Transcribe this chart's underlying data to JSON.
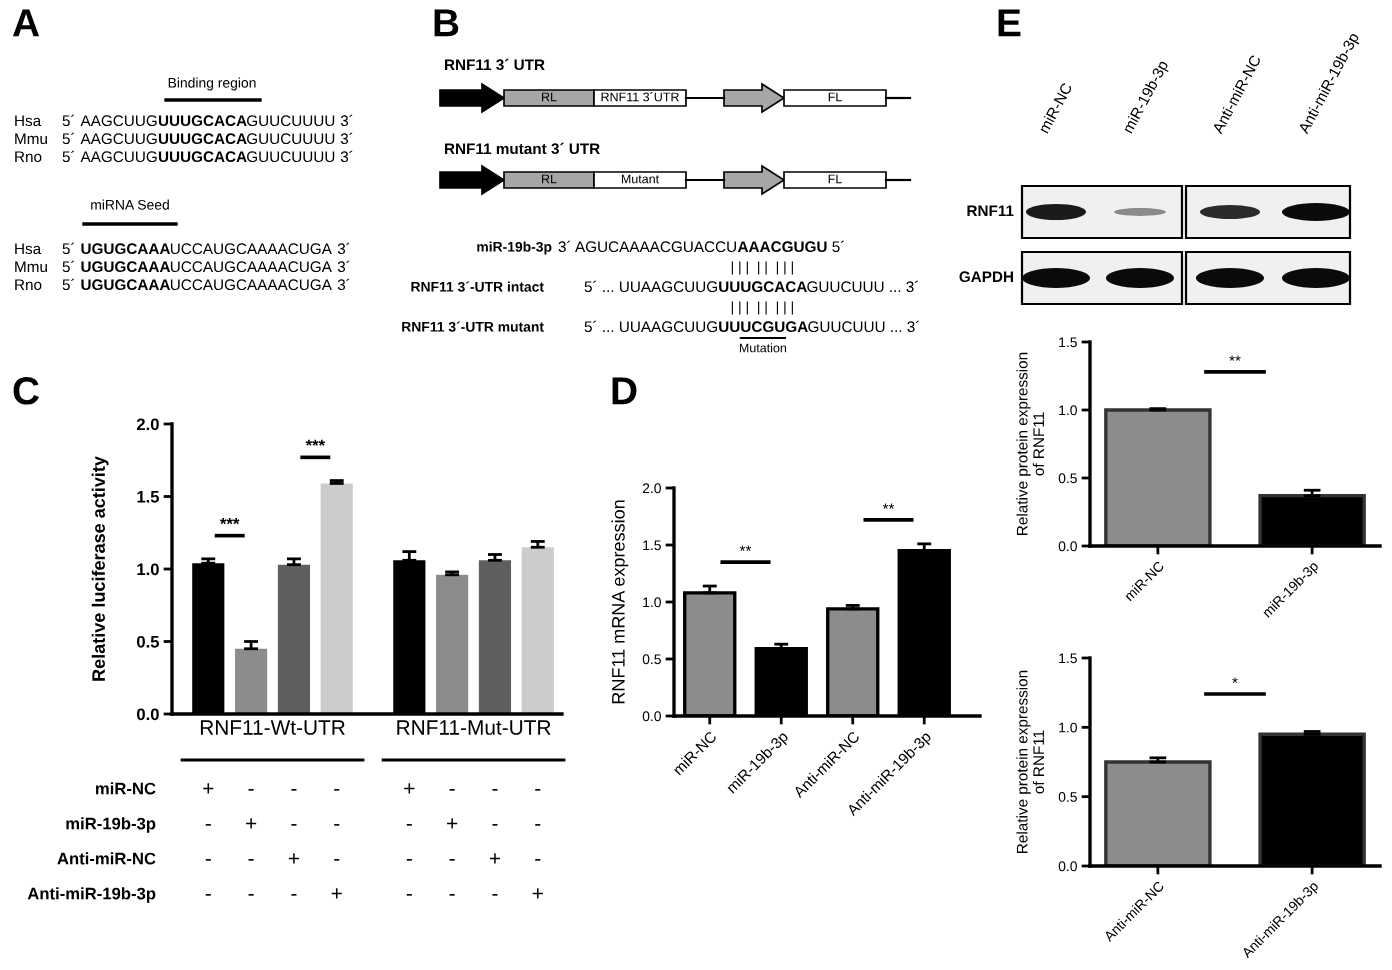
{
  "chart_data": [
    {
      "type": "other",
      "title": "A",
      "annotations": [
        "Binding region",
        "Hsa",
        "5´",
        "AAGCUUG",
        "UUUGCACA",
        "GUUCUUUU",
        "3´",
        "Mmu",
        "5´",
        "AAGCUUG",
        "UUUGCACA",
        "GUUCUUUU",
        "3´",
        "Rno",
        "5´",
        "AAGCUUG",
        "UUUGCACA",
        "GUUCUUUU",
        "3´",
        "miRNA Seed",
        "Hsa",
        "5´",
        "UGUGCAAA",
        "UCCAUGCAAAACUGA",
        "3´",
        "Mmu",
        "5´",
        "UGUGCAAA",
        "UCCAUGCAAAACUGA",
        "3´",
        "Rno",
        "5´",
        "UGUGCAAA",
        "UCCAUGCAAAACUGA",
        "3´"
      ]
    },
    {
      "type": "other",
      "title": "B",
      "annotations": [
        "RNF11 3´ UTR",
        "RL",
        "RNF11 3´UTR",
        "FL",
        "RNF11 mutant 3´ UTR",
        "RL",
        "Mutant",
        "FL",
        "miR-19b-3p",
        "3´ AGUCAAAACGUACCU",
        "AAACGUGU",
        "5´",
        "| | |  | |  | | |",
        "RNF11 3´-UTR intact",
        "5´ ... UUAAGCUUG",
        "UUUGCACA",
        "GUUCUUU ... 3´",
        "| | |  | |  | | |",
        "RNF11 3´-UTR mutant",
        "5´ ... UUAAGCUUG",
        "UUUCGUGA",
        "GUUCUUU ... 3´",
        "Mutation"
      ]
    },
    {
      "type": "bar",
      "title": "C",
      "ylabel": "Relative luciferase activity",
      "categories": [
        "RNF11-Wt-UTR",
        "RNF11-Mut-UTR"
      ],
      "series": [
        {
          "color": "#000000",
          "values": [
            1.04,
            1.06
          ],
          "errors": [
            0.03,
            0.06
          ]
        },
        {
          "color": "#8c8c8c",
          "values": [
            0.45,
            0.96
          ],
          "errors": [
            0.05,
            0.02
          ]
        },
        {
          "color": "#5f5f5f",
          "values": [
            1.03,
            1.06
          ],
          "errors": [
            0.04,
            0.04
          ]
        },
        {
          "color": "#cccccc",
          "values": [
            1.59,
            1.15
          ],
          "errors": [
            0.02,
            0.04
          ]
        }
      ],
      "ylim": [
        0,
        2
      ],
      "yticks": [
        {
          "value": 0,
          "label": "0.0"
        },
        {
          "value": 0.5,
          "label": "0.5"
        },
        {
          "value": 1,
          "label": "1.0"
        },
        {
          "value": 1.5,
          "label": "1.5"
        },
        {
          "value": 2,
          "label": "2.0"
        }
      ],
      "annotations": [
        "***",
        "***",
        "miR-NC",
        "+",
        "-",
        "-",
        "-",
        "+",
        "-",
        "-",
        "-",
        "miR-19b-3p",
        "-",
        "+",
        "-",
        "-",
        "-",
        "+",
        "-",
        "-",
        "Anti-miR-NC",
        "-",
        "-",
        "+",
        "-",
        "-",
        "-",
        "+",
        "-",
        "Anti-miR-19b-3p",
        "-",
        "-",
        "-",
        "+",
        "-",
        "-",
        "-",
        "+"
      ]
    },
    {
      "type": "bar",
      "title": "D",
      "ylabel": "RNF11 mRNA expression",
      "categories": [
        "miR-NC",
        "miR-19b-3p",
        "Anti-miR-NC",
        "Anti-miR-19b-3p"
      ],
      "values": [
        1.08,
        0.59,
        0.94,
        1.45
      ],
      "errors": [
        0.06,
        0.04,
        0.03,
        0.06
      ],
      "colors": [
        "#8c8c8c",
        "#000000",
        "#8c8c8c",
        "#000000"
      ],
      "ylim": [
        0,
        2
      ],
      "yticks": [
        {
          "value": 0,
          "label": "0.0"
        },
        {
          "value": 0.5,
          "label": "0.5"
        },
        {
          "value": 1,
          "label": "1.0"
        },
        {
          "value": 1.5,
          "label": "1.5"
        },
        {
          "value": 2,
          "label": "2.0"
        }
      ],
      "annotations": [
        "**",
        "**"
      ]
    },
    {
      "type": "other",
      "title": "E",
      "annotations": [
        "miR-NC",
        "miR-19b-3p",
        "Anti-miR-NC",
        "Anti-miR-19b-3p",
        "RNF11",
        "GAPDH"
      ]
    },
    {
      "type": "bar",
      "ylabel": "Relative protein expression\nof RNF11",
      "categories": [
        "miR-NC",
        "miR-19b-3p"
      ],
      "values": [
        1.0,
        0.37
      ],
      "errors": [
        0.01,
        0.04
      ],
      "colors": [
        "#8c8c8c",
        "#000000"
      ],
      "ylim": [
        0,
        1.5
      ],
      "yticks": [
        {
          "value": 0,
          "label": "0.0"
        },
        {
          "value": 0.5,
          "label": "0.5"
        },
        {
          "value": 1,
          "label": "1.0"
        },
        {
          "value": 1.5,
          "label": "1.5"
        }
      ],
      "annotations": [
        "**"
      ]
    },
    {
      "type": "bar",
      "ylabel": "Relative protein expression\nof RNF11",
      "categories": [
        "Anti-miR-NC",
        "Anti-miR-19b-3p"
      ],
      "values": [
        0.75,
        0.95
      ],
      "errors": [
        0.03,
        0.02
      ],
      "colors": [
        "#8c8c8c",
        "#000000"
      ],
      "ylim": [
        0,
        1.5
      ],
      "yticks": [
        {
          "value": 0,
          "label": "0.0"
        },
        {
          "value": 0.5,
          "label": "0.5"
        },
        {
          "value": 1,
          "label": "1.0"
        },
        {
          "value": 1.5,
          "label": "1.5"
        }
      ],
      "annotations": [
        "*"
      ]
    }
  ]
}
